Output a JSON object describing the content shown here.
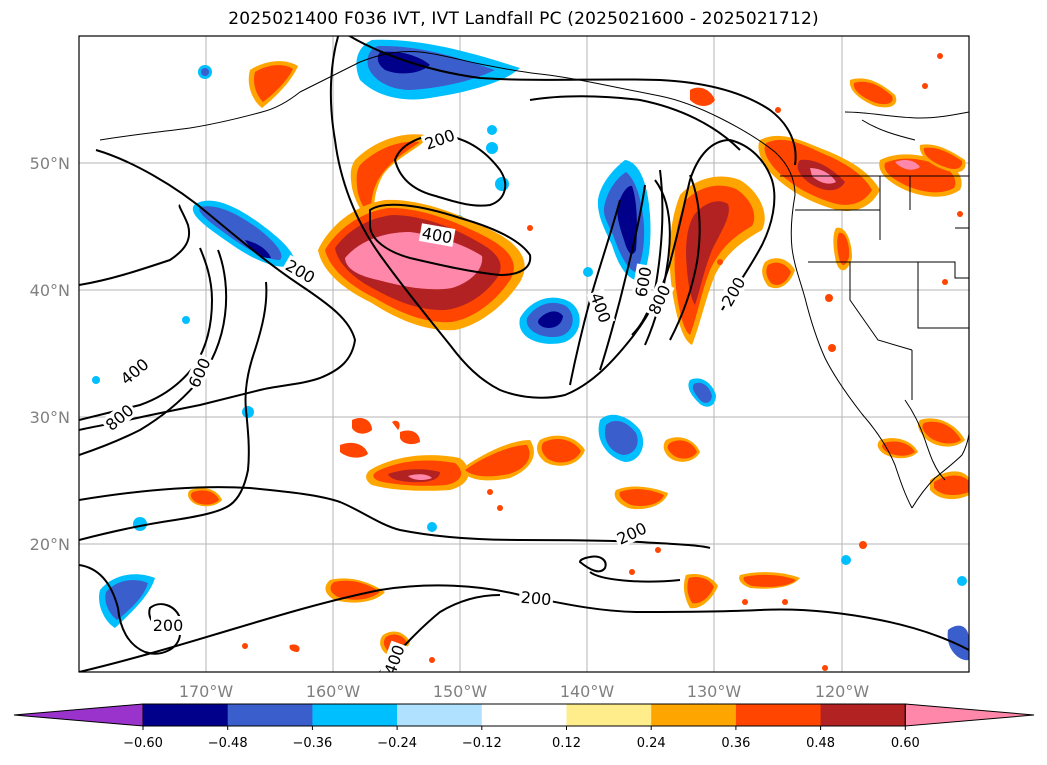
{
  "title": "2025021400 F036 IVT, IVT Landfall PC (2025021600 - 2025021712)",
  "lon_labels": [
    "170°W",
    "160°W",
    "150°W",
    "140°W",
    "130°W",
    "120°W"
  ],
  "lat_labels": [
    "50°N",
    "40°N",
    "30°N",
    "20°N"
  ],
  "colorbar": {
    "ticks": [
      "−0.60",
      "−0.48",
      "−0.36",
      "−0.24",
      "−0.12",
      "0.12",
      "0.24",
      "0.36",
      "0.48",
      "0.60"
    ],
    "colors": [
      "#9933cc",
      "#00008b",
      "#3a5fcd",
      "#00bfff",
      "#b0e2ff",
      "#ffffff",
      "#ffec8b",
      "#ffa500",
      "#ff4500",
      "#b22222",
      "#ff88aa"
    ]
  },
  "contour_labels": [
    "200",
    "200",
    "200",
    "200",
    "200",
    "200",
    "400",
    "400",
    "400",
    "400",
    "600",
    "600",
    "800",
    "800",
    "800"
  ],
  "colors": {
    "pos_low": "#ffec8b",
    "pos_mid": "#ffa500",
    "pos_high": "#ff4500",
    "pos_higher": "#b22222",
    "pos_max": "#ff88aa",
    "neg_low": "#b0e2ff",
    "neg_mid": "#00bfff",
    "neg_high": "#3a5fcd",
    "neg_higher": "#00008b"
  }
}
